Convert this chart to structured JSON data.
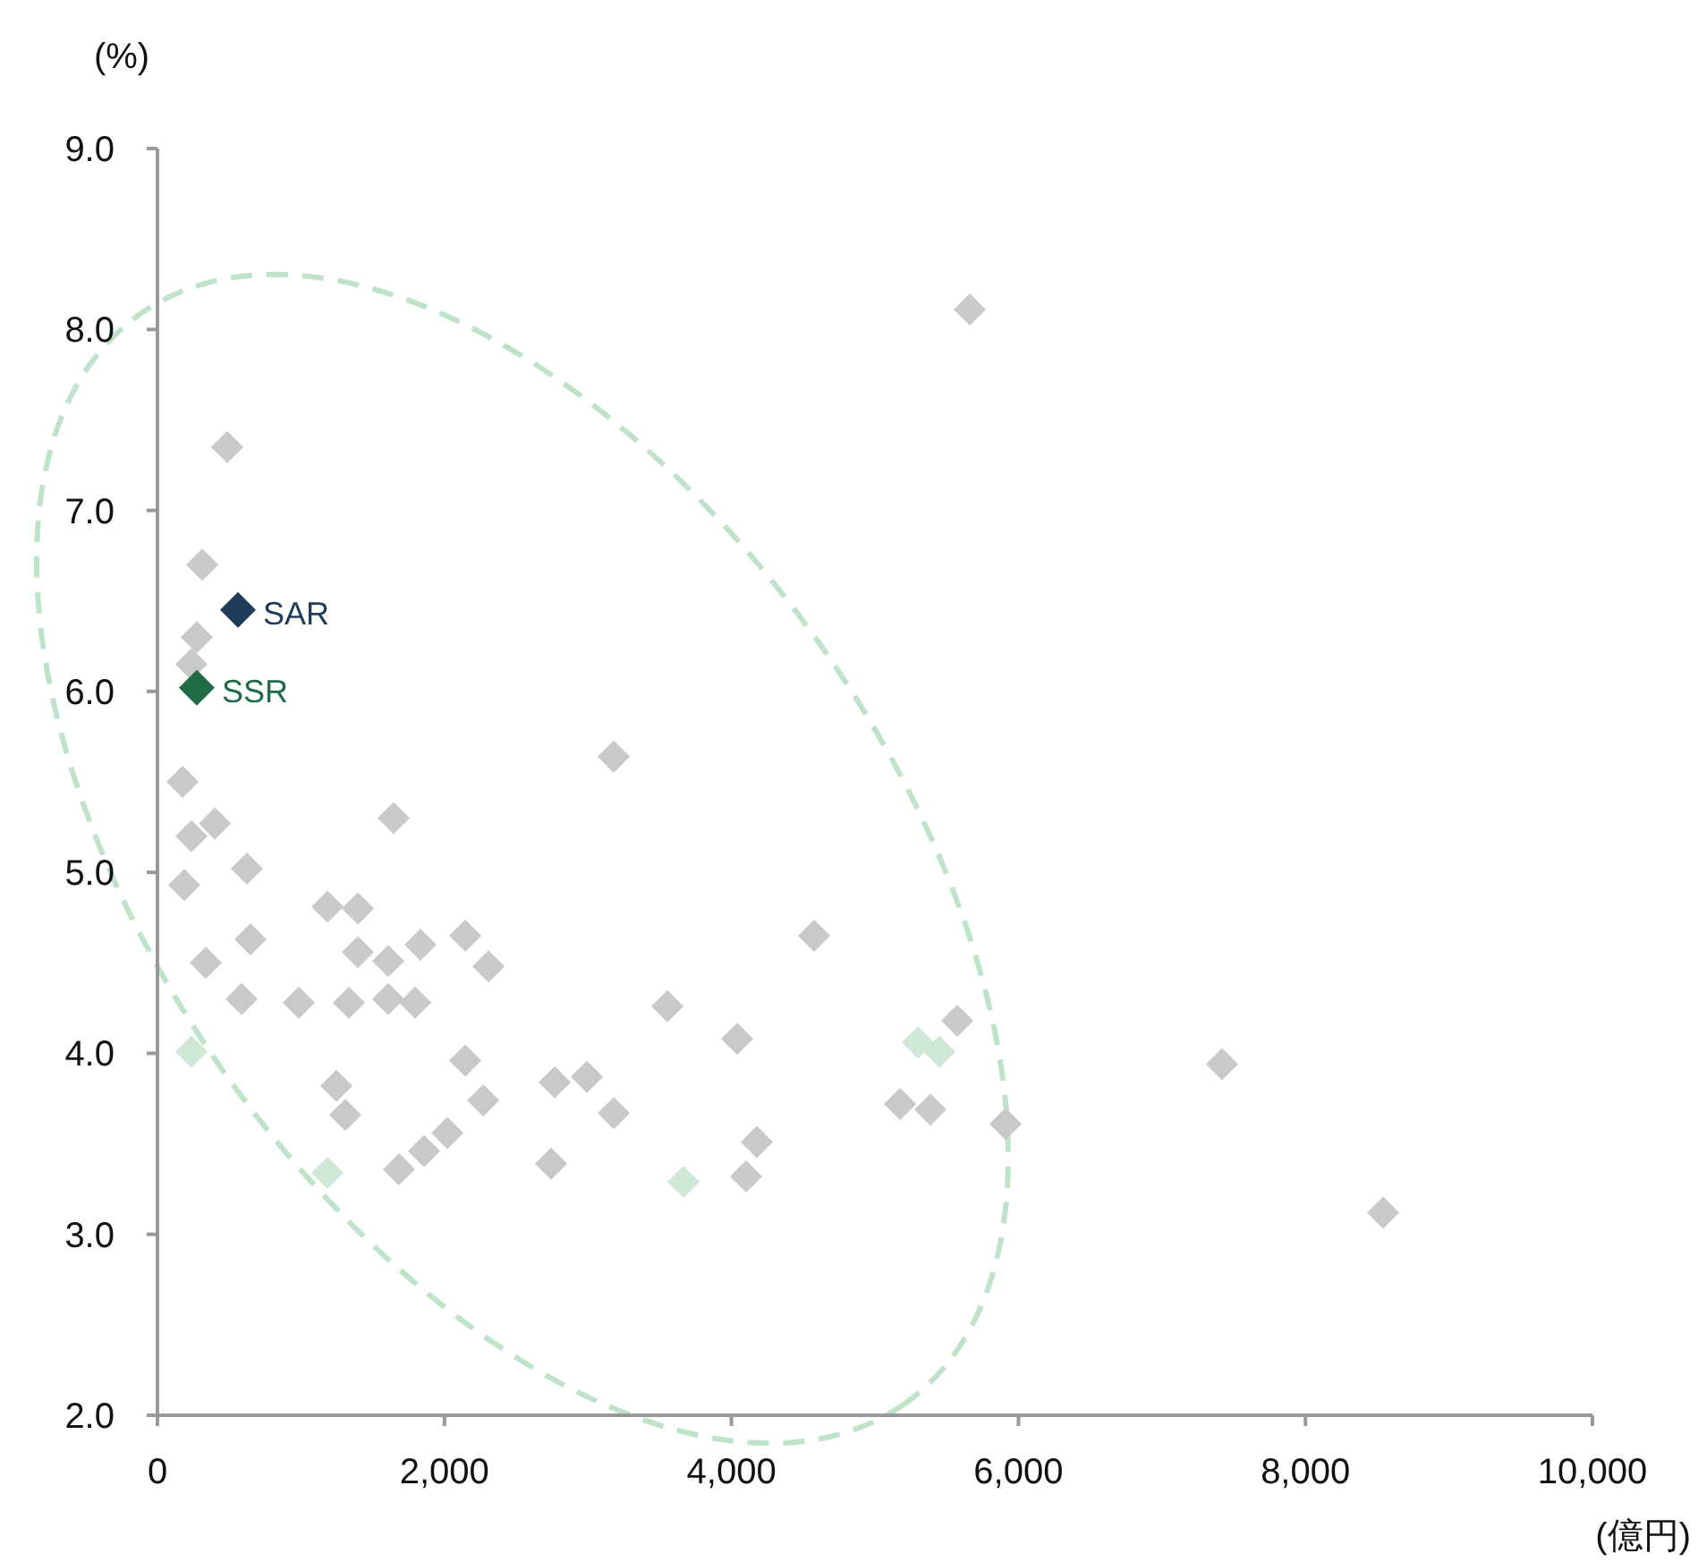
{
  "chart_data": {
    "type": "scatter",
    "xlabel": "(億円)",
    "ylabel": "(%)",
    "xlim": [
      0,
      10000
    ],
    "ylim": [
      2.0,
      9.0
    ],
    "xticks": [
      0,
      {
        "value": 2000,
        "label": "2,000"
      },
      {
        "value": 4000,
        "label": "4,000"
      },
      {
        "value": 6000,
        "label": "6,000"
      },
      {
        "value": 8000,
        "label": "8,000"
      },
      {
        "value": 10000,
        "label": "10,000"
      }
    ],
    "yticks": [
      {
        "value": 2,
        "label": "2.0"
      },
      {
        "value": 3,
        "label": "3.0"
      },
      {
        "value": 4,
        "label": "4.0"
      },
      {
        "value": 5,
        "label": "5.0"
      },
      {
        "value": 6,
        "label": "6.0"
      },
      {
        "value": 7,
        "label": "7.0"
      },
      {
        "value": 8,
        "label": "8.0"
      },
      {
        "value": 9,
        "label": "9.0"
      }
    ],
    "marker": "diamond",
    "grid": false,
    "series": [
      {
        "color": "#c9c9c9",
        "x": [
          486,
          312,
          274,
          237,
          3180,
          175,
          1646,
          400,
          237,
          623,
          187,
          1185,
          1397,
          648,
          337,
          1397,
          1833,
          2145,
          2307,
          586,
          985,
          1334,
          1608,
          1796,
          1608,
          3554,
          2145,
          2270,
          1247,
          1309,
          2768,
          2993,
          3180,
          2020,
          1858,
          1683,
          2743,
          4576,
          4040,
          5574,
          5175,
          5387,
          4177,
          4102,
          5910,
          7419,
          8541,
          5661
        ],
        "values": [
          7.35,
          6.7,
          6.3,
          6.15,
          5.64,
          5.5,
          5.3,
          5.27,
          5.2,
          5.02,
          4.93,
          4.81,
          4.8,
          4.63,
          4.5,
          4.56,
          4.6,
          4.65,
          4.48,
          4.3,
          4.28,
          4.28,
          4.3,
          4.28,
          4.51,
          4.26,
          3.96,
          3.74,
          3.82,
          3.66,
          3.84,
          3.87,
          3.67,
          3.56,
          3.46,
          3.36,
          3.39,
          4.65,
          4.08,
          4.18,
          3.72,
          3.69,
          3.51,
          3.32,
          3.61,
          3.94,
          3.12,
          8.11
        ]
      },
      {
        "color": "#cfe8d6",
        "x": [
          237,
          1185,
          3666,
          5300,
          5449
        ],
        "values": [
          4.01,
          3.34,
          3.29,
          4.06,
          4.01
        ]
      },
      {
        "name": "SAR",
        "color": "#1f3b5a",
        "x": [
          561
        ],
        "values": [
          6.45
        ]
      },
      {
        "name": "SSR",
        "color": "#1e6b45",
        "x": [
          274
        ],
        "values": [
          6.02
        ]
      }
    ]
  }
}
